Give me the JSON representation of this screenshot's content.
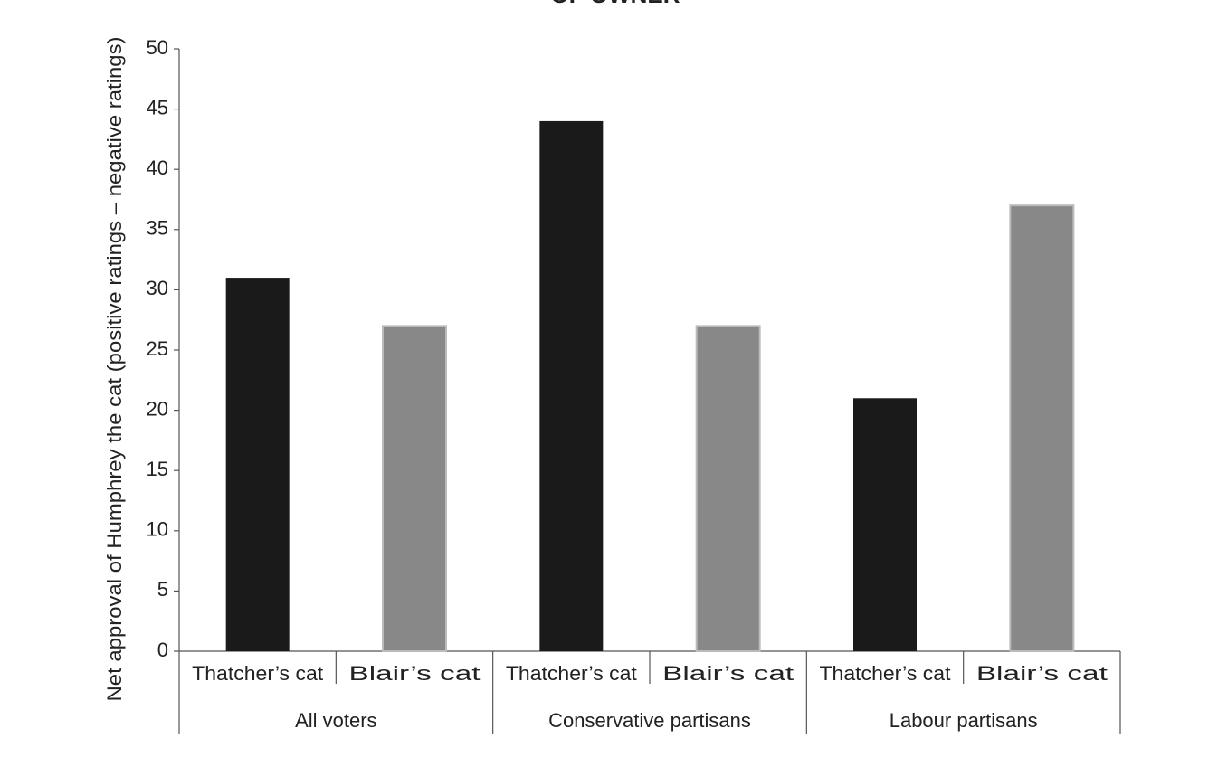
{
  "chart_data": {
    "type": "bar",
    "title": "OF OWNER",
    "y_label": "Net approval of Humphrey the cat (positive ratings – negative ratings)",
    "categories": [
      "Thatcher’s cat",
      "Blair’s cat",
      "Thatcher’s cat",
      "Blair’s cat",
      "Thatcher’s cat",
      "Blair’s cat"
    ],
    "groups": [
      "All voters",
      "Conservative partisans",
      "Labour partisans"
    ],
    "values": [
      31,
      27,
      44,
      27,
      21,
      37
    ],
    "colors": [
      "#1a1a1a",
      "#888888",
      "#1a1a1a",
      "#888888",
      "#1a1a1a",
      "#888888"
    ],
    "ylim": [
      0,
      50
    ],
    "yticks": [
      0,
      5,
      10,
      15,
      20,
      25,
      30,
      35,
      40,
      45,
      50
    ],
    "grid": false
  }
}
